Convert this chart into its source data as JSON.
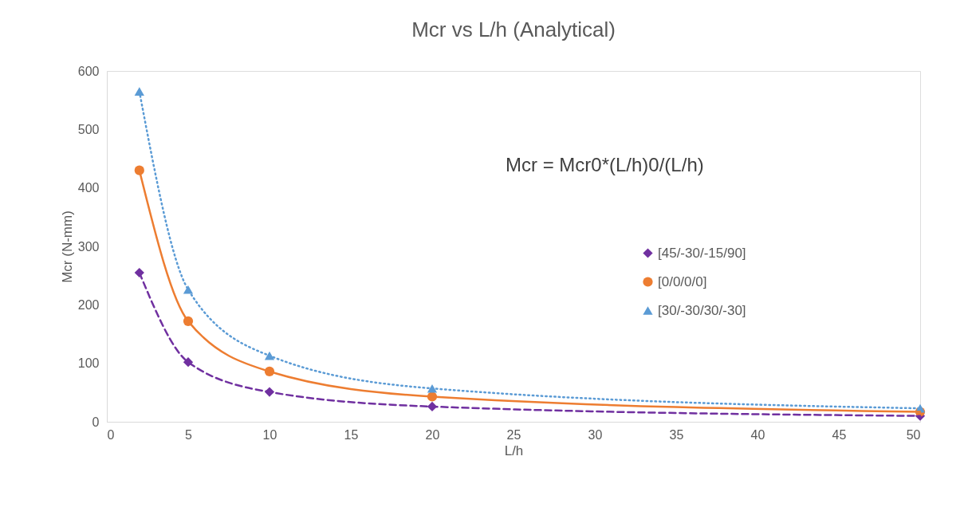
{
  "chart_data": {
    "type": "line",
    "title": "Mcr vs L/h (Analytical)",
    "xlabel": "L/h",
    "ylabel": "Mcr (N-mm)",
    "x": [
      2,
      5,
      10,
      20,
      50
    ],
    "series": [
      {
        "name": "[45/-30/-15/90]",
        "color": "#7030a0",
        "marker": "diamond",
        "line_style": "dashed",
        "values": [
          255,
          102,
          51,
          26,
          10
        ]
      },
      {
        "name": "[0/0/0/0]",
        "color": "#ed7d31",
        "marker": "circle",
        "line_style": "solid",
        "values": [
          430,
          172,
          86,
          43,
          17
        ]
      },
      {
        "name": "[30/-30/30/-30]",
        "color": "#5b9bd5",
        "marker": "triangle",
        "line_style": "dotted",
        "values": [
          565,
          226,
          113,
          57,
          23
        ]
      }
    ],
    "xlim": [
      0,
      50
    ],
    "xticks": [
      0,
      5,
      10,
      15,
      20,
      25,
      30,
      35,
      40,
      45,
      50
    ],
    "ylim": [
      0,
      600
    ],
    "yticks": [
      0,
      100,
      200,
      300,
      400,
      500,
      600
    ],
    "grid": false,
    "legend": "right",
    "annotations": [
      "Mcr = Mcr0*(L/h)0/(L/h)"
    ]
  }
}
